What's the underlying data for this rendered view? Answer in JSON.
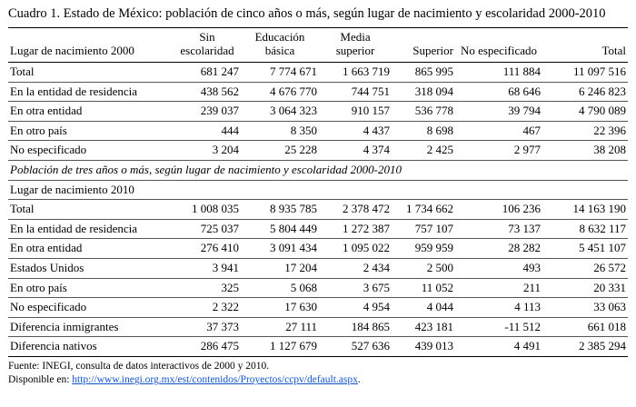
{
  "title": "Cuadro 1. Estado de México: población de cinco años o más, según lugar de nacimiento y escolaridad 2000-2010",
  "row_header_2000": "Lugar de nacimiento 2000",
  "row_header_2010": "Lugar de nacimiento 2010",
  "columns": [
    "Sin escolaridad",
    "Educación básica",
    "Media superior",
    "Superior",
    "No especificado",
    "Total"
  ],
  "interlude": "Población de tres años o más, según lugar de nacimiento y escolaridad 2000-2010",
  "section_2000_rows": [
    {
      "label": "Total",
      "values": [
        "681 247",
        "7 774 671",
        "1 663 719",
        "865 995",
        "111 884",
        "11 097 516"
      ]
    },
    {
      "label": "En la entidad de residencia",
      "values": [
        "438 562",
        "4 676 770",
        "744 751",
        "318 094",
        "68 646",
        "6 246 823"
      ]
    },
    {
      "label": "En otra entidad",
      "values": [
        "239 037",
        "3 064 323",
        "910 157",
        "536 778",
        "39 794",
        "4 790 089"
      ]
    },
    {
      "label": "En otro país",
      "values": [
        "444",
        "8 350",
        "4 437",
        "8 698",
        "467",
        "22 396"
      ]
    },
    {
      "label": "No especificado",
      "values": [
        "3 204",
        "25 228",
        "4 374",
        "2 425",
        "2 977",
        "38 208"
      ]
    }
  ],
  "section_2010_rows": [
    {
      "label": "Total",
      "values": [
        "1 008 035",
        "8 935 785",
        "2 378 472",
        "1 734 662",
        "106 236",
        "14 163 190"
      ]
    },
    {
      "label": "En la entidad de residencia",
      "values": [
        "725 037",
        "5 804 449",
        "1 272 387",
        "757 107",
        "73 137",
        "8 632 117"
      ]
    },
    {
      "label": "En otra entidad",
      "values": [
        "276 410",
        "3 091 434",
        "1 095 022",
        "959 959",
        "28 282",
        "5 451 107"
      ]
    },
    {
      "label": "Estados Unidos",
      "values": [
        "3 941",
        "17 204",
        "2 434",
        "2 500",
        "493",
        "26 572"
      ]
    },
    {
      "label": "En otro país",
      "values": [
        "325",
        "5 068",
        "3 675",
        "11 052",
        "211",
        "20 331"
      ]
    },
    {
      "label": "No especificado",
      "values": [
        "2 322",
        "17 630",
        "4 954",
        "4 044",
        "4 113",
        "33 063"
      ]
    },
    {
      "label": "Diferencia inmigrantes",
      "values": [
        "37 373",
        "27 111",
        "184 865",
        "423 181",
        "-11 512",
        "661 018"
      ]
    },
    {
      "label": "Diferencia nativos",
      "values": [
        "286 475",
        "1 127 679",
        "527 636",
        "439 013",
        "4 491",
        "2 385 294"
      ]
    }
  ],
  "footer": {
    "source": "Fuente: INEGI, consulta de datos interactivos de 2000 y 2010.",
    "available_label": "Disponible en: ",
    "url": "http://www.inegi.org.mx/est/contenidos/Proyectos/ccpv/default.aspx",
    "url_suffix": "."
  },
  "colors": {
    "link": "#1155CC",
    "text": "#000000",
    "background": "#FFFFFF"
  }
}
